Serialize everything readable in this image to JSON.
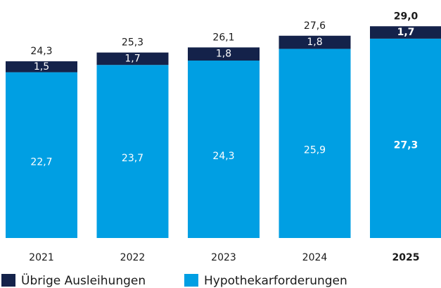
{
  "chart_data": {
    "type": "stacked-bar",
    "categories": [
      "2021",
      "2022",
      "2023",
      "2024",
      "2025"
    ],
    "series": [
      {
        "name": "Hypothekarforderungen",
        "color": "#009fe3",
        "values": [
          22.7,
          23.7,
          24.3,
          25.9,
          27.3
        ],
        "value_labels": [
          "22,7",
          "23,7",
          "24,3",
          "25,9",
          "27,3"
        ]
      },
      {
        "name": "Übrige Ausleihungen",
        "color": "#14224a",
        "values": [
          1.5,
          1.7,
          1.8,
          1.8,
          1.7
        ],
        "value_labels": [
          "1,5",
          "1,7",
          "1,8",
          "1,8",
          "1,7"
        ]
      }
    ],
    "totals": [
      24.3,
      25.3,
      26.1,
      27.6,
      29.0
    ],
    "total_labels": [
      "24,3",
      "25,3",
      "26,1",
      "27,6",
      "29,0"
    ],
    "highlight_index": 4
  }
}
